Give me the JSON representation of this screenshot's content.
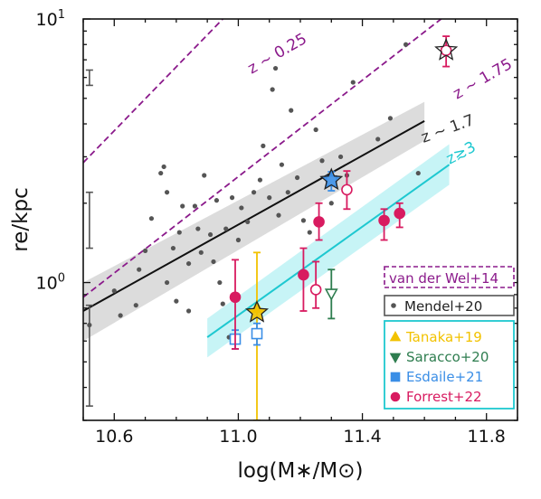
{
  "chart_data": {
    "type": "scatter",
    "title": "",
    "xlabel": "log(M∗/M⊙)",
    "ylabel": "re/kpc",
    "xlim": [
      10.5,
      11.9
    ],
    "ylim": [
      0.3,
      10
    ],
    "yscale": "log",
    "grid": false,
    "legend_placement": "lower-right",
    "x_ticks": [
      10.6,
      11.0,
      11.4,
      11.8
    ],
    "x_tick_labels": [
      "10.6",
      "11.0",
      "11.4",
      "11.8"
    ],
    "y_ticks": [
      1,
      10
    ],
    "y_tick_labels": [
      "10^0",
      "10^1"
    ],
    "colors": {
      "vdw": "#8b1a8b",
      "mendel": "#555555",
      "fit_z17": "#111111",
      "fit_z3": "#1ec8d0",
      "tanaka": "#f2c200",
      "saracco": "#2e7d4f",
      "esdaile": "#3a8ee6",
      "forrest": "#d81b60",
      "legend_box_border": "#1ec8d0"
    },
    "vdw_lines": [
      {
        "label": "z ~ 0.25",
        "x": [
          10.5,
          11.0
        ],
        "y": [
          2.85,
          11.5
        ]
      },
      {
        "label": "z ~ 1.75",
        "x": [
          10.5,
          11.72
        ],
        "y": [
          0.88,
          11.5
        ]
      }
    ],
    "mendel_fit": {
      "label": "z ~ 1.7",
      "x": [
        10.5,
        11.6
      ],
      "y": [
        0.78,
        4.1
      ],
      "band_low": [
        0.6,
        3.45
      ],
      "band_high": [
        1.0,
        4.85
      ]
    },
    "z3_fit": {
      "label": "z≳3",
      "x": [
        10.9,
        11.68
      ],
      "y": [
        0.62,
        2.8
      ],
      "band_low": [
        0.52,
        2.35
      ],
      "band_high": [
        0.73,
        3.35
      ]
    },
    "mendel_points": [
      {
        "x": 10.52,
        "y": 0.69
      },
      {
        "x": 10.6,
        "y": 0.93
      },
      {
        "x": 10.62,
        "y": 0.75
      },
      {
        "x": 10.67,
        "y": 0.82
      },
      {
        "x": 10.68,
        "y": 1.12
      },
      {
        "x": 10.7,
        "y": 1.32
      },
      {
        "x": 10.72,
        "y": 1.75
      },
      {
        "x": 10.75,
        "y": 2.6
      },
      {
        "x": 10.76,
        "y": 2.75
      },
      {
        "x": 10.77,
        "y": 2.2
      },
      {
        "x": 10.77,
        "y": 1.0
      },
      {
        "x": 10.79,
        "y": 1.35
      },
      {
        "x": 10.8,
        "y": 0.85
      },
      {
        "x": 10.81,
        "y": 1.55
      },
      {
        "x": 10.82,
        "y": 1.95
      },
      {
        "x": 10.84,
        "y": 1.18
      },
      {
        "x": 10.84,
        "y": 0.78
      },
      {
        "x": 10.86,
        "y": 1.95
      },
      {
        "x": 10.87,
        "y": 1.6
      },
      {
        "x": 10.88,
        "y": 1.3
      },
      {
        "x": 10.89,
        "y": 2.55
      },
      {
        "x": 10.91,
        "y": 1.52
      },
      {
        "x": 10.92,
        "y": 1.2
      },
      {
        "x": 10.93,
        "y": 2.05
      },
      {
        "x": 10.94,
        "y": 1.0
      },
      {
        "x": 10.95,
        "y": 0.83
      },
      {
        "x": 10.96,
        "y": 1.6
      },
      {
        "x": 10.97,
        "y": 0.62
      },
      {
        "x": 10.98,
        "y": 2.1
      },
      {
        "x": 11.0,
        "y": 1.45
      },
      {
        "x": 11.01,
        "y": 1.92
      },
      {
        "x": 11.03,
        "y": 1.7
      },
      {
        "x": 11.05,
        "y": 2.2
      },
      {
        "x": 11.07,
        "y": 2.45
      },
      {
        "x": 11.08,
        "y": 3.3
      },
      {
        "x": 11.1,
        "y": 2.1
      },
      {
        "x": 11.11,
        "y": 5.4
      },
      {
        "x": 11.12,
        "y": 6.5
      },
      {
        "x": 11.13,
        "y": 1.8
      },
      {
        "x": 11.14,
        "y": 2.8
      },
      {
        "x": 11.16,
        "y": 2.2
      },
      {
        "x": 11.17,
        "y": 4.5
      },
      {
        "x": 11.19,
        "y": 2.5
      },
      {
        "x": 11.21,
        "y": 1.72
      },
      {
        "x": 11.23,
        "y": 1.55
      },
      {
        "x": 11.25,
        "y": 3.8
      },
      {
        "x": 11.27,
        "y": 2.9
      },
      {
        "x": 11.3,
        "y": 2.0
      },
      {
        "x": 11.33,
        "y": 3.0
      },
      {
        "x": 11.35,
        "y": 2.55
      },
      {
        "x": 11.37,
        "y": 5.75
      },
      {
        "x": 11.45,
        "y": 3.5
      },
      {
        "x": 11.49,
        "y": 4.2
      },
      {
        "x": 11.54,
        "y": 8.0
      },
      {
        "x": 11.58,
        "y": 2.6
      }
    ],
    "mendel_error_bars": [
      {
        "x": 10.52,
        "y": 6.0,
        "lo": 5.6,
        "hi": 6.4
      },
      {
        "x": 10.52,
        "y": 1.75,
        "lo": 1.35,
        "hi": 2.2
      },
      {
        "x": 10.52,
        "y": 0.5,
        "lo": 0.34,
        "hi": 0.82
      }
    ],
    "series": [
      {
        "name": "Tanaka+19",
        "marker": "triangle-up",
        "color": "#f2c200",
        "points": [
          {
            "x": 11.06,
            "y": 0.8,
            "lo": 0.3,
            "hi": 1.3
          }
        ]
      },
      {
        "name": "Saracco+20",
        "marker": "triangle-down",
        "color": "#2e7d4f",
        "points": [
          {
            "x": 11.3,
            "y": 0.91,
            "lo": 0.73,
            "hi": 1.12,
            "hollow": true
          }
        ]
      },
      {
        "name": "Esdaile+21",
        "marker": "square",
        "color": "#3a8ee6",
        "points": [
          {
            "x": 10.99,
            "y": 0.61,
            "lo": 0.56,
            "hi": 0.66,
            "hollow": true
          },
          {
            "x": 11.06,
            "y": 0.64,
            "lo": 0.58,
            "hi": 0.7,
            "hollow": true
          },
          {
            "x": 11.3,
            "y": 2.43,
            "lo": 2.23,
            "hi": 2.63,
            "hollow": true
          }
        ]
      },
      {
        "name": "Forrest+22",
        "marker": "circle",
        "color": "#d81b60",
        "points": [
          {
            "x": 10.99,
            "y": 0.88,
            "lo": 0.56,
            "hi": 1.22
          },
          {
            "x": 11.21,
            "y": 1.07,
            "lo": 0.78,
            "hi": 1.35
          },
          {
            "x": 11.25,
            "y": 0.94,
            "lo": 0.8,
            "hi": 1.2,
            "hollow": true
          },
          {
            "x": 11.26,
            "y": 1.7,
            "lo": 1.45,
            "hi": 2.0
          },
          {
            "x": 11.35,
            "y": 2.25,
            "lo": 1.9,
            "hi": 2.65,
            "hollow": true
          },
          {
            "x": 11.47,
            "y": 1.72,
            "lo": 1.45,
            "hi": 1.9
          },
          {
            "x": 11.52,
            "y": 1.83,
            "lo": 1.62,
            "hi": 2.0
          },
          {
            "x": 11.67,
            "y": 7.6,
            "lo": 6.6,
            "hi": 8.6,
            "hollow": true
          }
        ]
      }
    ],
    "stars": [
      {
        "x": 11.06,
        "y": 0.77,
        "color": "#f2c200"
      },
      {
        "x": 11.3,
        "y": 2.45,
        "color": "#3a8ee6"
      },
      {
        "x": 11.67,
        "y": 7.6,
        "color": "#ffffff"
      }
    ],
    "legend": {
      "top_box": "van der Wel+14",
      "mid_box": "Mendel+20",
      "entries": [
        "Tanaka+19",
        "Saracco+20",
        "Esdaile+21",
        "Forrest+22"
      ]
    }
  }
}
